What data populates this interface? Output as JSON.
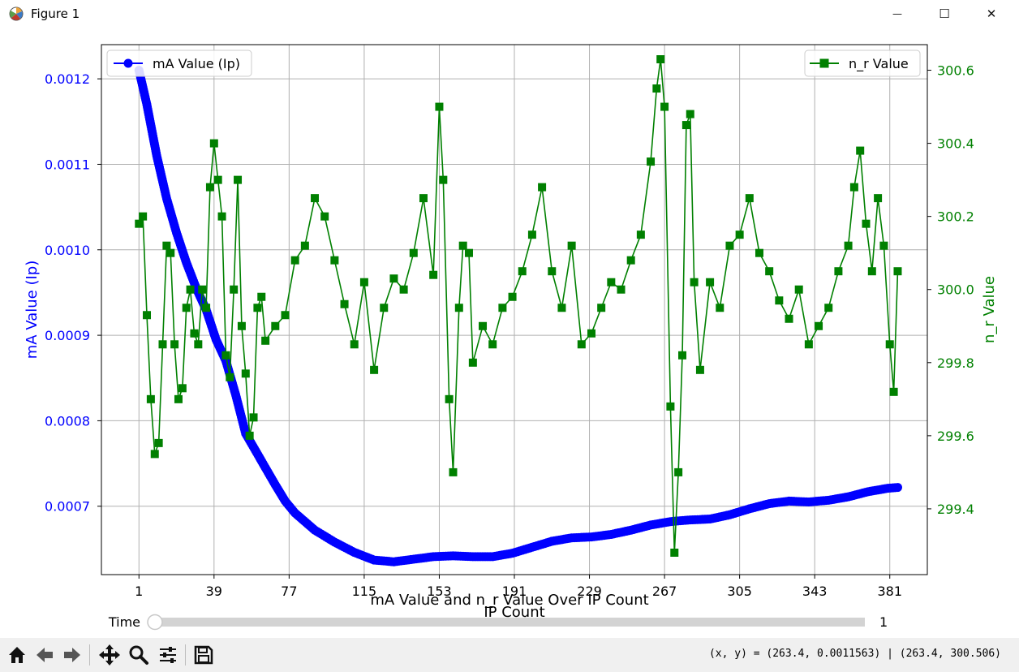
{
  "window": {
    "title": "Figure 1",
    "minimize_glyph": "—",
    "maximize_glyph": "☐",
    "close_glyph": "✕"
  },
  "toolbar": {
    "buttons": [
      {
        "name": "home-icon"
      },
      {
        "name": "back-icon"
      },
      {
        "name": "forward-icon"
      },
      {
        "name": "pan-icon"
      },
      {
        "name": "zoom-icon"
      },
      {
        "name": "configure-subplots-icon"
      },
      {
        "name": "save-icon"
      }
    ],
    "coords": "(x, y) = (263.4, 0.0011563) | (263.4, 300.506)"
  },
  "slider": {
    "label": "Time",
    "value_text": "1",
    "value": 1,
    "min": 1,
    "max": 1
  },
  "chart_data": {
    "type": "line",
    "title": "mA Value and n_r Value Over IP Count",
    "xlabel": "IP Count",
    "ylabel_left": "mA Value (Ip)",
    "ylabel_right": "n_r Value",
    "xlim": [
      -18,
      400
    ],
    "ylim_left": [
      0.00062,
      0.00124
    ],
    "ylim_right": [
      299.22,
      300.67
    ],
    "xticks": [
      1,
      39,
      77,
      115,
      153,
      191,
      229,
      267,
      305,
      343,
      381
    ],
    "yticks_left": [
      0.0007,
      0.0008,
      0.0009,
      0.001,
      0.0011,
      0.0012
    ],
    "ytick_labels_left": [
      "0.0007",
      "0.0008",
      "0.0009",
      "0.0010",
      "0.0011",
      "0.0012"
    ],
    "yticks_right": [
      299.4,
      299.6,
      299.8,
      300.0,
      300.2,
      300.4,
      300.6
    ],
    "ytick_labels_right": [
      "299.4",
      "299.6",
      "299.8",
      "300.0",
      "300.2",
      "300.4",
      "300.6"
    ],
    "grid": true,
    "colors": {
      "left": "#0000ff",
      "right": "#008000",
      "grid": "#b0b0b0"
    },
    "series": [
      {
        "name": "mA Value (Ip)",
        "axis": "left",
        "marker": "circle",
        "color": "#0000ff",
        "x": [
          1,
          5,
          10,
          15,
          20,
          25,
          30,
          35,
          40,
          45,
          50,
          55,
          60,
          65,
          70,
          75,
          80,
          90,
          100,
          110,
          120,
          130,
          140,
          150,
          160,
          170,
          180,
          190,
          200,
          210,
          220,
          230,
          240,
          250,
          260,
          270,
          280,
          290,
          300,
          310,
          320,
          330,
          340,
          350,
          360,
          370,
          380,
          385
        ],
        "y": [
          0.00121,
          0.00117,
          0.00111,
          0.00106,
          0.00102,
          0.000985,
          0.000955,
          0.00093,
          0.000895,
          0.00087,
          0.00083,
          0.000785,
          0.000765,
          0.000745,
          0.000725,
          0.000706,
          0.000692,
          0.000672,
          0.000658,
          0.000646,
          0.000637,
          0.000635,
          0.000638,
          0.000641,
          0.000642,
          0.000641,
          0.000641,
          0.000645,
          0.000652,
          0.000659,
          0.000663,
          0.000664,
          0.000667,
          0.000672,
          0.000678,
          0.000682,
          0.000684,
          0.000685,
          0.00069,
          0.000697,
          0.000703,
          0.000706,
          0.000705,
          0.000707,
          0.000711,
          0.000717,
          0.000721,
          0.000722
        ]
      },
      {
        "name": "n_r Value",
        "axis": "right",
        "marker": "square",
        "color": "#008000",
        "x": [
          1,
          3,
          5,
          7,
          9,
          11,
          13,
          15,
          17,
          19,
          21,
          23,
          25,
          27,
          29,
          31,
          33,
          35,
          37,
          39,
          41,
          43,
          45,
          47,
          49,
          51,
          53,
          55,
          57,
          59,
          61,
          63,
          65,
          70,
          75,
          80,
          85,
          90,
          95,
          100,
          105,
          110,
          115,
          120,
          125,
          130,
          135,
          140,
          145,
          150,
          153,
          155,
          158,
          160,
          163,
          165,
          168,
          170,
          175,
          180,
          185,
          190,
          195,
          200,
          205,
          210,
          215,
          220,
          225,
          230,
          235,
          240,
          245,
          250,
          255,
          260,
          263,
          265,
          267,
          270,
          272,
          274,
          276,
          278,
          280,
          282,
          285,
          290,
          295,
          300,
          305,
          310,
          315,
          320,
          325,
          330,
          335,
          340,
          345,
          350,
          355,
          360,
          363,
          366,
          369,
          372,
          375,
          378,
          381,
          383,
          385
        ],
        "y": [
          300.18,
          300.2,
          299.93,
          299.7,
          299.55,
          299.58,
          299.85,
          300.12,
          300.1,
          299.85,
          299.7,
          299.73,
          299.95,
          300.0,
          299.88,
          299.85,
          300.0,
          299.95,
          300.28,
          300.4,
          300.3,
          300.2,
          299.82,
          299.76,
          300.0,
          300.3,
          299.9,
          299.77,
          299.6,
          299.65,
          299.95,
          299.98,
          299.86,
          299.9,
          299.93,
          300.08,
          300.12,
          300.25,
          300.2,
          300.08,
          299.96,
          299.85,
          300.02,
          299.78,
          299.95,
          300.03,
          300.0,
          300.1,
          300.25,
          300.04,
          300.5,
          300.3,
          299.7,
          299.5,
          299.95,
          300.12,
          300.1,
          299.8,
          299.9,
          299.85,
          299.95,
          299.98,
          300.05,
          300.15,
          300.28,
          300.05,
          299.95,
          300.12,
          299.85,
          299.88,
          299.95,
          300.02,
          300.0,
          300.08,
          300.15,
          300.35,
          300.55,
          300.63,
          300.5,
          299.68,
          299.28,
          299.5,
          299.82,
          300.45,
          300.48,
          300.02,
          299.78,
          300.02,
          299.95,
          300.12,
          300.15,
          300.25,
          300.1,
          300.05,
          299.97,
          299.92,
          300.0,
          299.85,
          299.9,
          299.95,
          300.05,
          300.12,
          300.28,
          300.38,
          300.18,
          300.05,
          300.25,
          300.12,
          299.85,
          299.72,
          300.05
        ]
      }
    ]
  }
}
